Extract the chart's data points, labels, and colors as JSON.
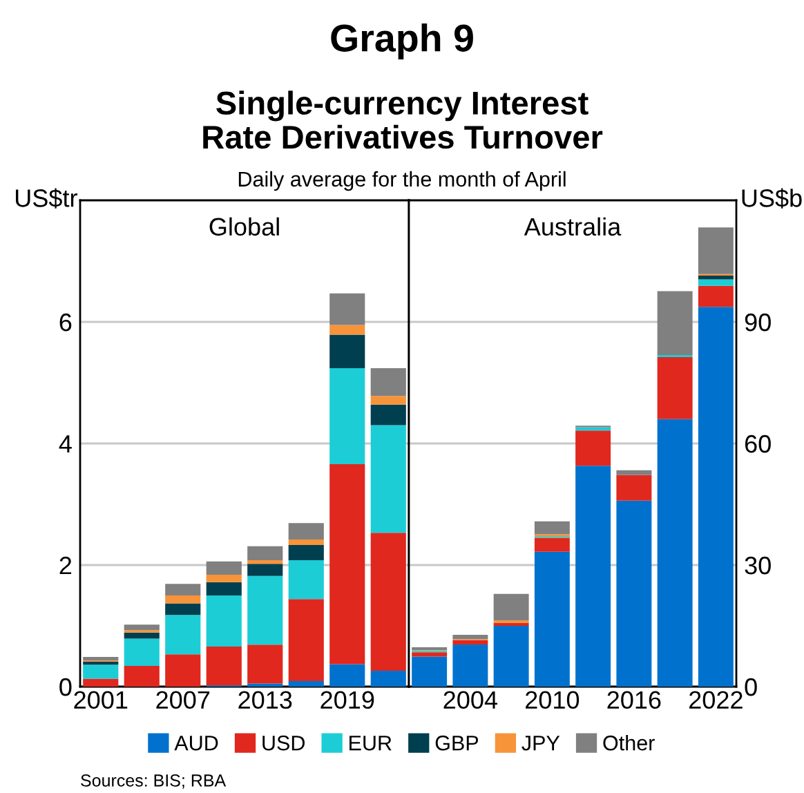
{
  "chart_data": [
    {
      "type": "bar",
      "stacked": true,
      "title": "Global",
      "ylabel": "US$tr",
      "legend": "bottom",
      "grid": "y",
      "annotations": [
        "Graph 9",
        "Single-currency Interest\nRate Derivatives Turnover",
        "Daily average for the month of April",
        "Sources: BIS; RBA"
      ],
      "categories": [
        "2001",
        null,
        "2007",
        null,
        "2013",
        null,
        "2019",
        null
      ],
      "ylim": [
        0,
        8
      ],
      "yticks": [
        0,
        2,
        4,
        6
      ],
      "series": [
        {
          "name": "AUD",
          "color": "#0072ce",
          "values": [
            0,
            0,
            0,
            0.02,
            0.05,
            0.09,
            0.37,
            0.26
          ]
        },
        {
          "name": "USD",
          "color": "#e0281f",
          "values": [
            0.13,
            0.34,
            0.53,
            0.64,
            0.64,
            1.35,
            3.29,
            2.27
          ]
        },
        {
          "name": "EUR",
          "color": "#1ccdd6",
          "values": [
            0.23,
            0.45,
            0.65,
            0.84,
            1.13,
            0.64,
            1.58,
            1.77
          ]
        },
        {
          "name": "GBP",
          "color": "#003f4f",
          "values": [
            0.05,
            0.1,
            0.19,
            0.22,
            0.2,
            0.25,
            0.55,
            0.34
          ]
        },
        {
          "name": "JPY",
          "color": "#f7943a",
          "values": [
            0.02,
            0.04,
            0.13,
            0.12,
            0.06,
            0.09,
            0.16,
            0.14
          ]
        },
        {
          "name": "Other",
          "color": "#808080",
          "values": [
            0.06,
            0.09,
            0.19,
            0.22,
            0.23,
            0.27,
            0.52,
            0.46
          ]
        }
      ]
    },
    {
      "type": "bar",
      "stacked": true,
      "title": "Australia",
      "ylabel": "US$b",
      "grid": "y",
      "categories": [
        null,
        "2004",
        null,
        "2010",
        null,
        "2016",
        null,
        "2022"
      ],
      "ylim": [
        0,
        120
      ],
      "yticks": [
        0,
        30,
        60,
        90
      ],
      "series": [
        {
          "color": "#0072ce",
          "values": [
            7.4,
            10.4,
            15.0,
            33.3,
            54.5,
            45.9,
            66.0,
            93.7
          ]
        },
        {
          "color": "#e0281f",
          "values": [
            1.1,
            1.1,
            0.7,
            3.4,
            8.7,
            6.3,
            15.3,
            5.2
          ]
        },
        {
          "color": "#1ccdd6",
          "values": [
            0.3,
            0,
            0,
            0.3,
            0.8,
            0,
            0.5,
            1.6
          ]
        },
        {
          "color": "#003f4f",
          "values": [
            0,
            0,
            0,
            0,
            0,
            0,
            0,
            0.9
          ]
        },
        {
          "color": "#f7943a",
          "values": [
            0.2,
            0.2,
            0.6,
            0.6,
            0,
            0,
            0,
            0.4
          ]
        },
        {
          "color": "#808080",
          "values": [
            0.7,
            1.1,
            6.6,
            3.2,
            0.4,
            1.2,
            15.8,
            11.5
          ]
        }
      ]
    }
  ]
}
